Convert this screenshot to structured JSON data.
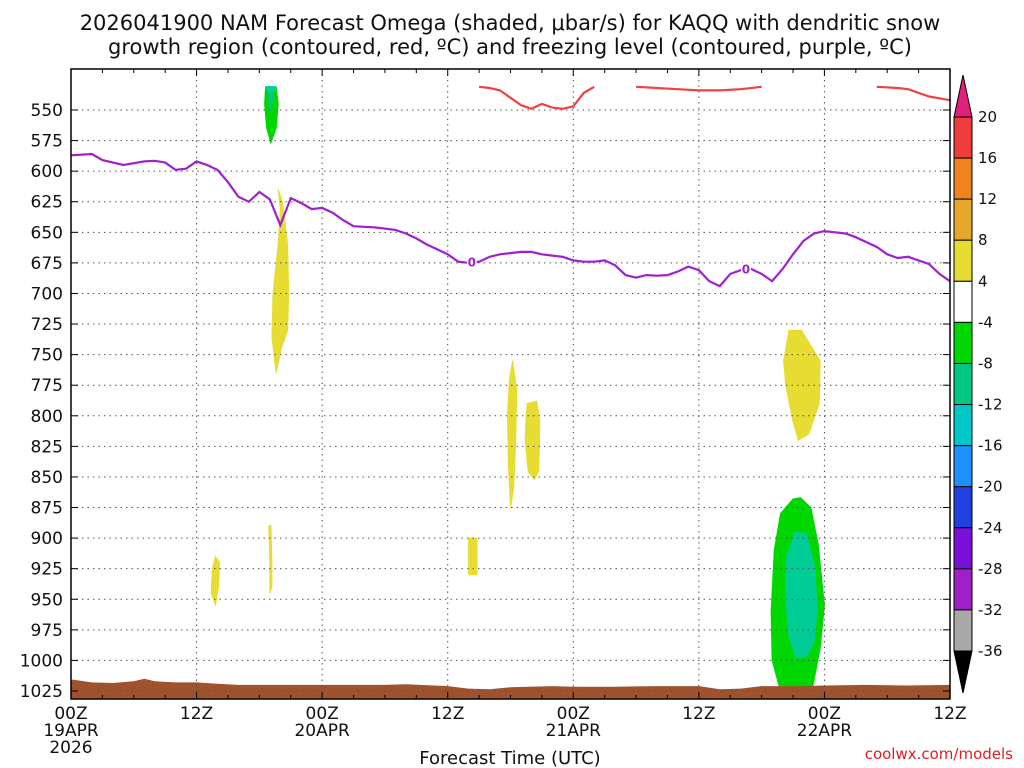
{
  "chart_data": {
    "type": "contour",
    "title_lines": [
      "2026041900 NAM Forecast Omega (shaded, μbar/s) for KAQQ with dendritic snow",
      "growth region (contoured, red, ºC) and freezing level (contoured, purple, ºC)"
    ],
    "xlabel": "Forecast Time (UTC)",
    "credit": "coolwx.com/models",
    "x_range_hours": [
      0,
      84
    ],
    "y_range_hpa": [
      530,
      1035
    ],
    "x_ticks": [
      {
        "h": 0,
        "lines": [
          "00Z",
          "19APR",
          "2026"
        ]
      },
      {
        "h": 12,
        "lines": [
          "12Z"
        ]
      },
      {
        "h": 24,
        "lines": [
          "00Z",
          "20APR"
        ]
      },
      {
        "h": 36,
        "lines": [
          "12Z"
        ]
      },
      {
        "h": 48,
        "lines": [
          "00Z",
          "21APR"
        ]
      },
      {
        "h": 60,
        "lines": [
          "12Z"
        ]
      },
      {
        "h": 72,
        "lines": [
          "00Z",
          "22APR"
        ]
      },
      {
        "h": 84,
        "lines": [
          "12Z"
        ]
      }
    ],
    "y_ticks": [
      550,
      575,
      600,
      625,
      650,
      675,
      700,
      725,
      750,
      775,
      800,
      825,
      850,
      875,
      900,
      925,
      950,
      975,
      1000,
      1025
    ],
    "freezing_level": {
      "label": "0",
      "color": "#a020d0",
      "label_at_hours": [
        38.3,
        64.5
      ],
      "points": [
        [
          0,
          587
        ],
        [
          2,
          586
        ],
        [
          3,
          591
        ],
        [
          5,
          595
        ],
        [
          7,
          592
        ],
        [
          8,
          591.5
        ],
        [
          9,
          593
        ],
        [
          10,
          599
        ],
        [
          11,
          598
        ],
        [
          12,
          592
        ],
        [
          13,
          595
        ],
        [
          14,
          599
        ],
        [
          15,
          609
        ],
        [
          16,
          621
        ],
        [
          17,
          625
        ],
        [
          18,
          617
        ],
        [
          19,
          623
        ],
        [
          20,
          644
        ],
        [
          21,
          622
        ],
        [
          22,
          626
        ],
        [
          23,
          631
        ],
        [
          24,
          630
        ],
        [
          25,
          634
        ],
        [
          26,
          640
        ],
        [
          27,
          645
        ],
        [
          28,
          645.5
        ],
        [
          29,
          646
        ],
        [
          30,
          647
        ],
        [
          31,
          648
        ],
        [
          32,
          651
        ],
        [
          33,
          655
        ],
        [
          34,
          660
        ],
        [
          35,
          664
        ],
        [
          36,
          668
        ],
        [
          37,
          674
        ],
        [
          38,
          675
        ],
        [
          39,
          674
        ],
        [
          40,
          670
        ],
        [
          41,
          668
        ],
        [
          42,
          667
        ],
        [
          43,
          666
        ],
        [
          44,
          666
        ],
        [
          45,
          668
        ],
        [
          46,
          669
        ],
        [
          47,
          670
        ],
        [
          48,
          673
        ],
        [
          49,
          674
        ],
        [
          50,
          674
        ],
        [
          51,
          673
        ],
        [
          52,
          677
        ],
        [
          53,
          685
        ],
        [
          54,
          687
        ],
        [
          55,
          685
        ],
        [
          56,
          685.5
        ],
        [
          57,
          685
        ],
        [
          58,
          682
        ],
        [
          59,
          678
        ],
        [
          60,
          681
        ],
        [
          61,
          690
        ],
        [
          62,
          694
        ],
        [
          63,
          684
        ],
        [
          64,
          681
        ],
        [
          65,
          680
        ],
        [
          66,
          684
        ],
        [
          67,
          690
        ],
        [
          68,
          680
        ],
        [
          69,
          668
        ],
        [
          70,
          657
        ],
        [
          71,
          651
        ],
        [
          72,
          649
        ],
        [
          73,
          650
        ],
        [
          74,
          651
        ],
        [
          75,
          654
        ],
        [
          76,
          658
        ],
        [
          77,
          662
        ],
        [
          78,
          668
        ],
        [
          79,
          671
        ],
        [
          80,
          670
        ],
        [
          81,
          673
        ],
        [
          82,
          676
        ],
        [
          83,
          684
        ],
        [
          84,
          690
        ]
      ]
    },
    "dgz_top": {
      "color": "#f04040",
      "points": [
        [
          39,
          531
        ],
        [
          40,
          532
        ],
        [
          41,
          534
        ],
        [
          42,
          540
        ],
        [
          43,
          546
        ],
        [
          44,
          549
        ],
        [
          45,
          545
        ],
        [
          46,
          548
        ],
        [
          47,
          549
        ],
        [
          48,
          547
        ],
        [
          49,
          536
        ],
        [
          50,
          531
        ]
      ]
    },
    "dgz_top_2": {
      "color": "#f04040",
      "points": [
        [
          54,
          531
        ],
        [
          56,
          532
        ],
        [
          58,
          533
        ],
        [
          60,
          534
        ],
        [
          62,
          534
        ],
        [
          64,
          533
        ],
        [
          66,
          531
        ]
      ]
    },
    "dgz_top_3": {
      "color": "#f04040",
      "points": [
        [
          77,
          531
        ],
        [
          79,
          532
        ],
        [
          80,
          533
        ],
        [
          81,
          536
        ],
        [
          82,
          539
        ],
        [
          84,
          542
        ]
      ]
    },
    "omega_regions": [
      {
        "value_class": "-8 to -4",
        "color": "#00d700",
        "outline": [
          [
            18.6,
            531
          ],
          [
            19.6,
            531
          ],
          [
            19.8,
            545
          ],
          [
            19.6,
            565
          ],
          [
            19.1,
            577
          ],
          [
            18.7,
            565
          ],
          [
            18.5,
            545
          ]
        ]
      },
      {
        "value_class": "-12 to -8",
        "color": "#00c882",
        "outline": [
          [
            18.9,
            531
          ],
          [
            19.3,
            531
          ],
          [
            19.3,
            541
          ],
          [
            19.1,
            551
          ],
          [
            18.9,
            541
          ]
        ]
      },
      {
        "value_class": "-12 to -8",
        "color": "#00cfa0",
        "outline": [
          [
            18.7,
            531
          ],
          [
            19.5,
            531
          ],
          [
            19.5,
            534
          ],
          [
            18.7,
            534
          ]
        ]
      },
      {
        "value_class": "4 to 8",
        "color": "#e6dc32",
        "outline": [
          [
            19.8,
            615
          ],
          [
            20.2,
            625
          ],
          [
            20.7,
            660
          ],
          [
            20.8,
            700
          ],
          [
            20.7,
            730
          ],
          [
            20.1,
            745
          ],
          [
            19.6,
            765
          ],
          [
            19.2,
            735
          ],
          [
            19.3,
            700
          ],
          [
            19.8,
            660
          ],
          [
            20.0,
            630
          ]
        ]
      },
      {
        "value_class": "4 to 8",
        "color": "#e6dc32",
        "outline": [
          [
            13.8,
            915
          ],
          [
            14.2,
            920
          ],
          [
            14.1,
            940
          ],
          [
            13.8,
            955
          ],
          [
            13.4,
            945
          ],
          [
            13.5,
            925
          ]
        ]
      },
      {
        "value_class": "4 to 8",
        "color": "#e6dc32",
        "outline": [
          [
            19.1,
            890
          ],
          [
            19.2,
            920
          ],
          [
            19.2,
            940
          ],
          [
            19.0,
            945
          ],
          [
            19.0,
            920
          ],
          [
            18.9,
            890
          ]
        ]
      },
      {
        "value_class": "4 to 8",
        "color": "#e6dc32",
        "outline": [
          [
            38.0,
            900
          ],
          [
            38.8,
            900
          ],
          [
            38.8,
            930
          ],
          [
            38.0,
            930
          ]
        ]
      },
      {
        "value_class": "4 to 8",
        "color": "#e6dc32",
        "outline": [
          [
            42.2,
            755
          ],
          [
            42.6,
            780
          ],
          [
            42.5,
            820
          ],
          [
            42.3,
            860
          ],
          [
            42.0,
            875
          ],
          [
            41.8,
            840
          ],
          [
            41.7,
            800
          ],
          [
            41.9,
            770
          ]
        ]
      },
      {
        "value_class": "4 to 8",
        "color": "#e6dc32",
        "outline": [
          [
            43.6,
            790
          ],
          [
            44.5,
            788
          ],
          [
            44.8,
            805
          ],
          [
            44.7,
            845
          ],
          [
            44.3,
            852
          ],
          [
            43.7,
            846
          ],
          [
            43.4,
            820
          ],
          [
            43.5,
            800
          ]
        ]
      },
      {
        "value_class": "4 to 8",
        "color": "#e6dc32",
        "outline": [
          [
            68.6,
            730
          ],
          [
            69.8,
            730
          ],
          [
            71.6,
            755
          ],
          [
            71.5,
            790
          ],
          [
            70.5,
            815
          ],
          [
            69.5,
            820
          ],
          [
            69.0,
            805
          ],
          [
            68.3,
            775
          ],
          [
            68.1,
            755
          ]
        ]
      },
      {
        "value_class": "-8 to -4",
        "color": "#00d700",
        "outline": [
          [
            69.0,
            868
          ],
          [
            69.7,
            867
          ],
          [
            70.7,
            875
          ],
          [
            71.4,
            905
          ],
          [
            72.0,
            955
          ],
          [
            71.6,
            990
          ],
          [
            70.8,
            1025
          ],
          [
            69.2,
            1031
          ],
          [
            67.8,
            1025
          ],
          [
            67.0,
            1000
          ],
          [
            66.9,
            960
          ],
          [
            67.2,
            910
          ],
          [
            67.8,
            880
          ]
        ]
      },
      {
        "value_class": "-12 to -8",
        "color": "#00cd96",
        "outline": [
          [
            69.2,
            895
          ],
          [
            70.3,
            897
          ],
          [
            71.1,
            925
          ],
          [
            71.3,
            960
          ],
          [
            71.0,
            985
          ],
          [
            70.3,
            997
          ],
          [
            69.3,
            998
          ],
          [
            68.6,
            980
          ],
          [
            68.3,
            950
          ],
          [
            68.4,
            915
          ]
        ]
      }
    ],
    "terrain": {
      "color": "#a0522d",
      "points": [
        [
          0,
          1015.5
        ],
        [
          2,
          1018
        ],
        [
          4,
          1018.5
        ],
        [
          6,
          1017
        ],
        [
          7,
          1015
        ],
        [
          8,
          1017
        ],
        [
          10,
          1018
        ],
        [
          12,
          1018
        ],
        [
          14,
          1019
        ],
        [
          16,
          1020
        ],
        [
          20,
          1020
        ],
        [
          24,
          1020
        ],
        [
          30,
          1020
        ],
        [
          32,
          1019.5
        ],
        [
          36,
          1021
        ],
        [
          38,
          1023
        ],
        [
          40,
          1023.5
        ],
        [
          42,
          1022
        ],
        [
          46,
          1021
        ],
        [
          48,
          1021.5
        ],
        [
          52,
          1021.5
        ],
        [
          56,
          1021
        ],
        [
          60,
          1021
        ],
        [
          62,
          1023.5
        ],
        [
          64,
          1023
        ],
        [
          66,
          1021
        ],
        [
          70,
          1021
        ],
        [
          72,
          1020.5
        ],
        [
          76,
          1020
        ],
        [
          80,
          1020.5
        ],
        [
          84,
          1020
        ]
      ]
    },
    "colorbar": {
      "labels": [
        "20",
        "16",
        "12",
        "8",
        "4",
        "-4",
        "-8",
        "-12",
        "-16",
        "-20",
        "-24",
        "-28",
        "-32",
        "-36"
      ],
      "colors": [
        "#f03c3c",
        "#f08220",
        "#e6a82a",
        "#e6dc32",
        "#ffffff",
        "#00d700",
        "#00c882",
        "#00c8c8",
        "#1e90ff",
        "#2040e0",
        "#7a10d8",
        "#a020c8",
        "#a8a8a8"
      ],
      "top_arrow_color": "#e0207a",
      "bottom_arrow_color": "#000000"
    }
  }
}
